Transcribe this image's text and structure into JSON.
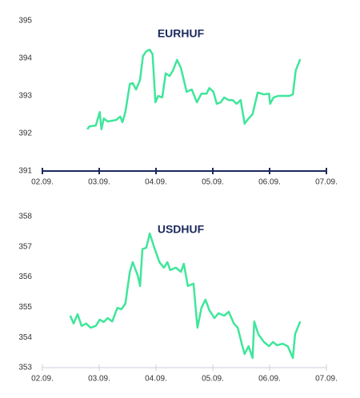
{
  "chart_data": [
    {
      "type": "line",
      "title": "EURHUF",
      "color": "#3fe69a",
      "x": [
        2.79,
        2.83,
        2.94,
        3.01,
        3.04,
        3.08,
        3.15,
        3.3,
        3.37,
        3.41,
        3.46,
        3.54,
        3.59,
        3.65,
        3.72,
        3.77,
        3.83,
        3.89,
        3.94,
        3.99,
        4.04,
        4.11,
        4.17,
        4.24,
        4.3,
        4.37,
        4.44,
        4.54,
        4.63,
        4.72,
        4.8,
        4.89,
        4.94,
        5.01,
        5.07,
        5.14,
        5.2,
        5.28,
        5.35,
        5.42,
        5.49,
        5.56,
        5.63,
        5.7,
        5.79,
        5.9,
        5.99,
        6.01,
        6.07,
        6.15,
        6.25,
        6.35,
        6.41,
        6.46,
        6.54
      ],
      "values": [
        392.11,
        392.19,
        392.21,
        392.57,
        392.11,
        392.4,
        392.32,
        392.36,
        392.45,
        392.3,
        392.57,
        393.32,
        393.34,
        393.17,
        393.43,
        394.06,
        394.19,
        394.23,
        394.11,
        392.83,
        393.0,
        392.96,
        393.6,
        393.53,
        393.68,
        393.96,
        393.74,
        393.11,
        393.17,
        392.83,
        393.06,
        393.06,
        393.21,
        393.11,
        392.79,
        392.83,
        392.96,
        392.89,
        392.89,
        392.79,
        392.89,
        392.26,
        392.4,
        392.51,
        393.09,
        393.04,
        393.06,
        392.79,
        392.96,
        393.0,
        393.0,
        393.0,
        393.04,
        393.68,
        393.98
      ],
      "xlim": [
        2,
        7
      ],
      "xticks": [
        {
          "value": 2,
          "label": "02.09."
        },
        {
          "value": 3,
          "label": "03.09."
        },
        {
          "value": 4,
          "label": "04.09."
        },
        {
          "value": 5,
          "label": "05.09."
        },
        {
          "value": 6,
          "label": "06.09."
        },
        {
          "value": 7,
          "label": "07.09."
        }
      ],
      "ylim": [
        391,
        395
      ],
      "yticks": [
        391,
        392,
        393,
        394,
        395
      ]
    },
    {
      "type": "line",
      "title": "USDHUF",
      "color": "#3fe69a",
      "x": [
        2.49,
        2.55,
        2.62,
        2.69,
        2.77,
        2.85,
        2.94,
        3.01,
        3.08,
        3.15,
        3.23,
        3.32,
        3.39,
        3.46,
        3.54,
        3.59,
        3.68,
        3.72,
        3.76,
        3.83,
        3.89,
        3.97,
        4.06,
        4.14,
        4.2,
        4.25,
        4.35,
        4.44,
        4.49,
        4.56,
        4.66,
        4.73,
        4.8,
        4.87,
        4.94,
        5.03,
        5.1,
        5.2,
        5.28,
        5.37,
        5.44,
        5.51,
        5.56,
        5.63,
        5.7,
        5.73,
        5.8,
        5.9,
        5.99,
        6.06,
        6.13,
        6.23,
        6.32,
        6.41,
        6.45,
        6.54
      ],
      "values": [
        354.72,
        354.46,
        354.77,
        354.38,
        354.46,
        354.32,
        354.38,
        354.59,
        354.51,
        354.64,
        354.53,
        354.98,
        354.93,
        355.12,
        356.17,
        356.49,
        356.04,
        355.7,
        356.92,
        356.97,
        357.44,
        356.97,
        356.49,
        356.31,
        356.49,
        356.23,
        356.31,
        356.17,
        356.44,
        355.7,
        355.78,
        354.32,
        354.98,
        355.25,
        354.9,
        354.64,
        354.8,
        354.72,
        354.85,
        354.46,
        354.32,
        353.79,
        353.45,
        353.71,
        353.32,
        354.53,
        354.11,
        353.85,
        353.71,
        353.85,
        353.74,
        353.79,
        353.71,
        353.32,
        354.11,
        354.53
      ],
      "xlim": [
        2,
        7
      ],
      "xticks": [
        {
          "value": 2,
          "label": "02.09."
        },
        {
          "value": 3,
          "label": "03.09."
        },
        {
          "value": 4,
          "label": "04.09."
        },
        {
          "value": 5,
          "label": "05.09."
        },
        {
          "value": 6,
          "label": "06.09."
        },
        {
          "value": 7,
          "label": "07.09."
        }
      ],
      "ylim": [
        353,
        358
      ],
      "yticks": [
        353,
        354,
        355,
        356,
        357,
        358
      ]
    }
  ]
}
